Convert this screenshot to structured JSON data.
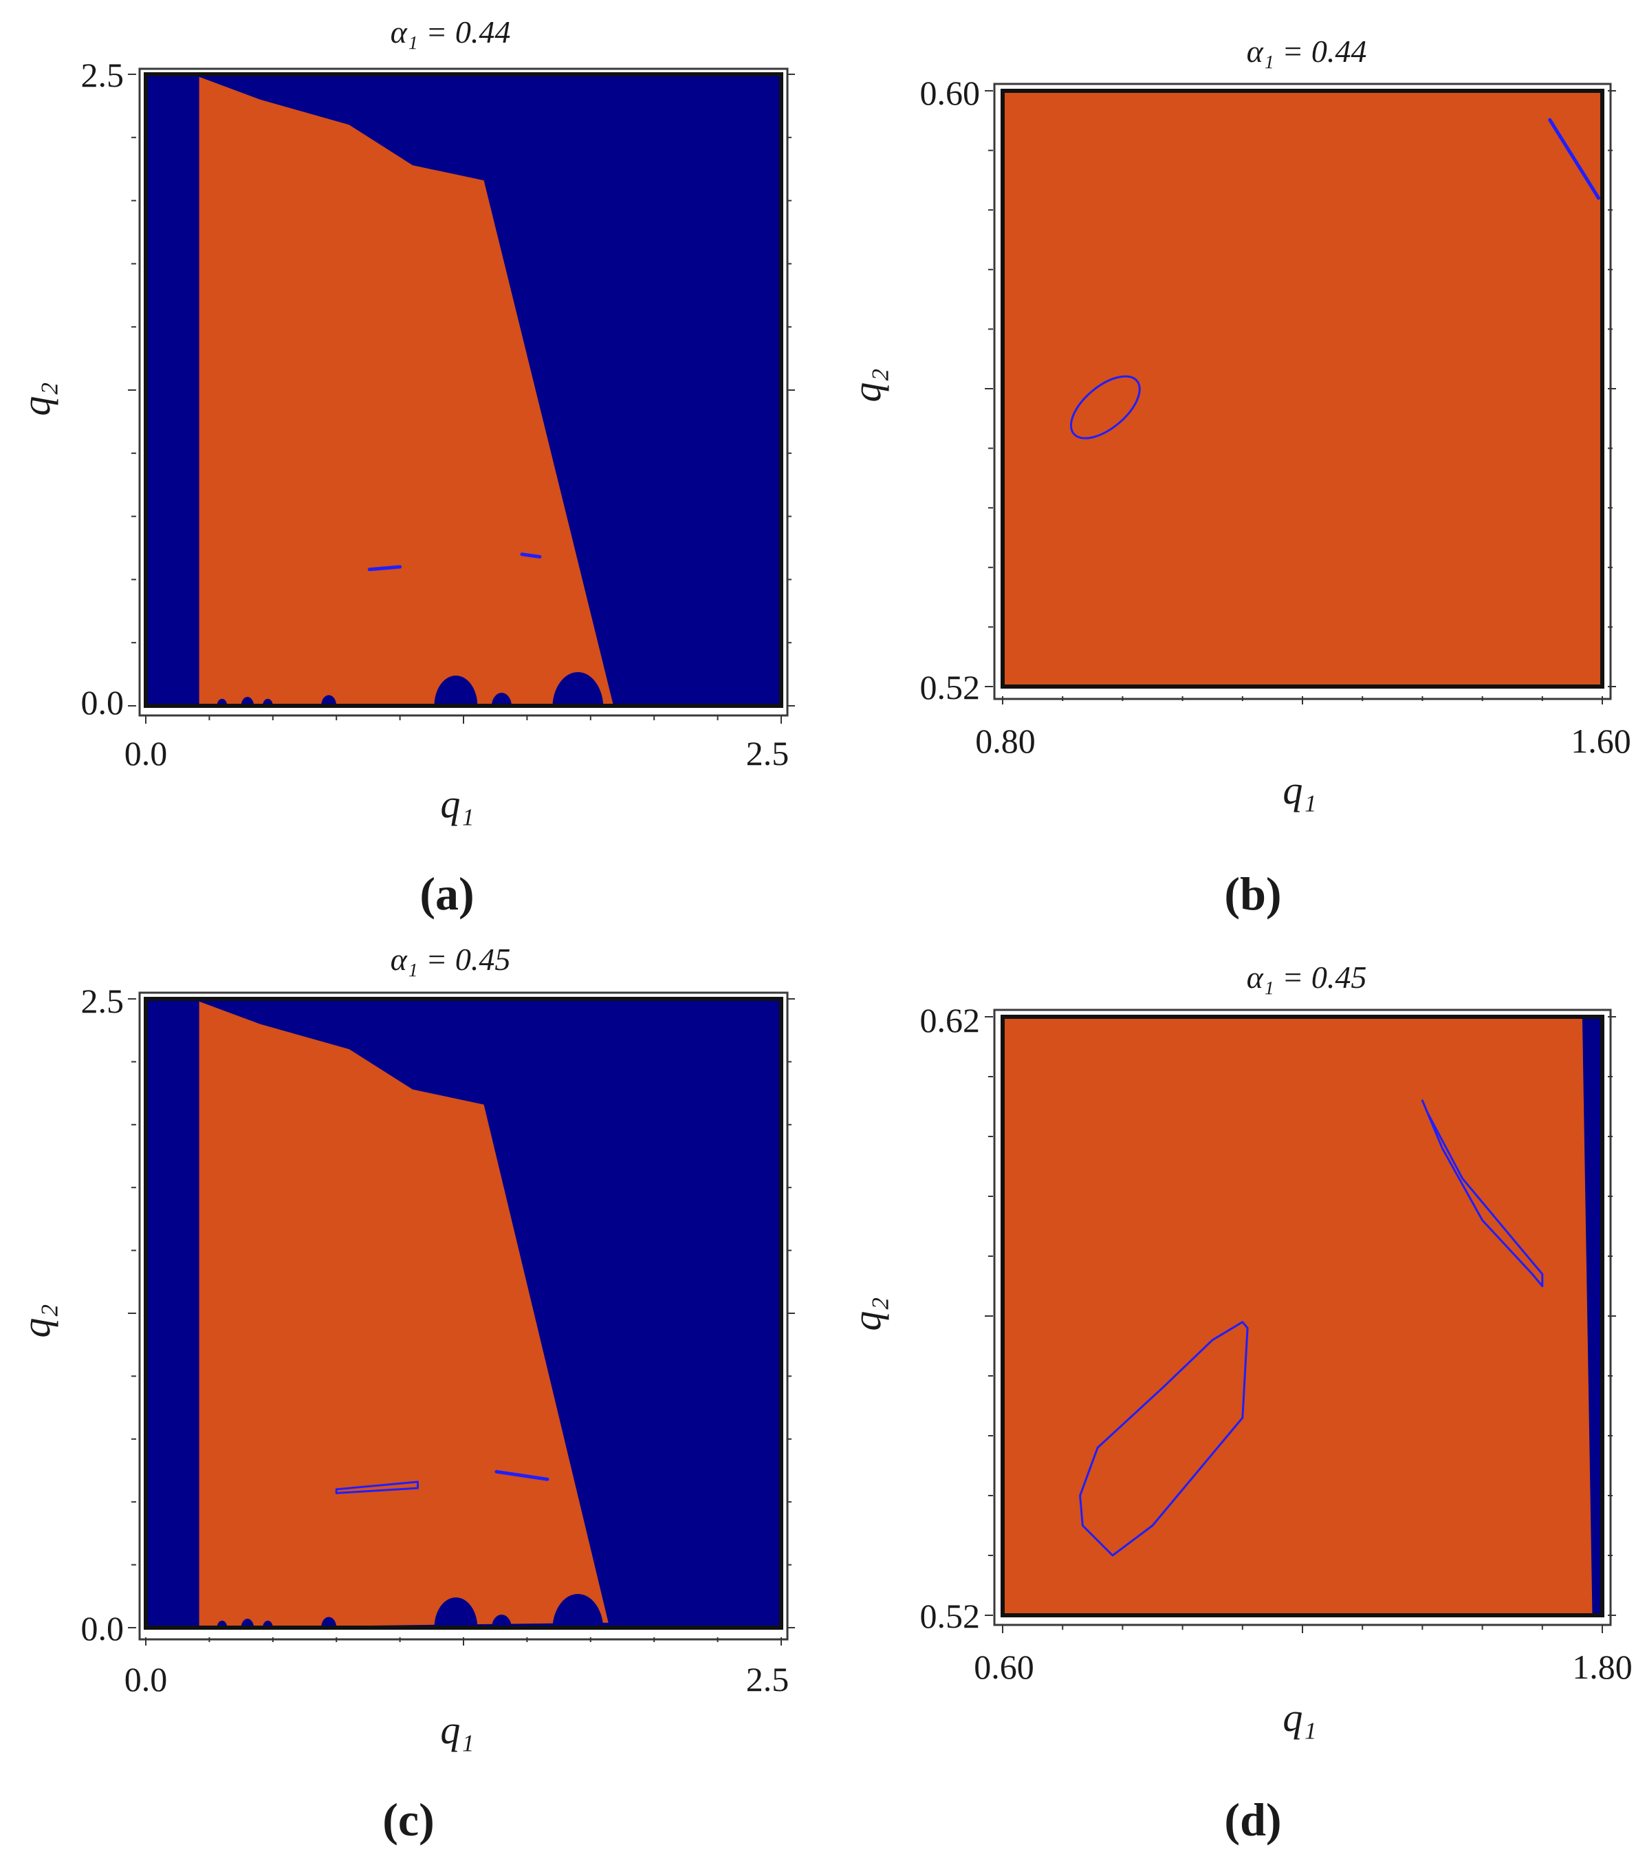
{
  "colors": {
    "blue_region": "#00008B",
    "orange_region": "#D5501B",
    "curve": "#1f1fff",
    "frame": "#111111"
  },
  "chart_data": [
    {
      "id": "a",
      "type": "heatmap",
      "caption": "(a)",
      "caption_letter": "a",
      "title": "α₁ = 0.44",
      "xlabel": "q₁",
      "ylabel": "q₂",
      "xlim": [
        0.0,
        2.5
      ],
      "ylim": [
        0.0,
        2.5
      ],
      "xticks": [
        "0.0",
        "2.5"
      ],
      "yticks": [
        "0.0",
        "2.5"
      ],
      "regions": [
        {
          "color": "blue_region",
          "label": "background"
        },
        {
          "color": "orange_region",
          "label": "region",
          "boundary": [
            [
              0.21,
              2.49
            ],
            [
              0.45,
              2.4
            ],
            [
              0.8,
              2.3
            ],
            [
              1.05,
              2.14
            ],
            [
              1.33,
              2.08
            ],
            [
              1.84,
              0.0
            ],
            [
              0.21,
              0.0
            ]
          ]
        }
      ],
      "curves": [
        {
          "shape": "line",
          "points": [
            [
              0.88,
              0.54
            ],
            [
              1.0,
              0.55
            ]
          ]
        },
        {
          "shape": "line",
          "points": [
            [
              1.48,
              0.6
            ],
            [
              1.55,
              0.59
            ]
          ]
        }
      ],
      "bumps_along_bottom": [
        [
          0.72,
          0.06
        ],
        [
          0.4,
          0.05
        ],
        [
          1.22,
          0.17
        ],
        [
          1.7,
          0.2
        ],
        [
          0.3,
          0.04
        ],
        [
          0.48,
          0.04
        ],
        [
          1.4,
          0.08
        ]
      ]
    },
    {
      "id": "b",
      "type": "heatmap",
      "caption": "(b)",
      "caption_letter": "b",
      "title": "α₁ = 0.44",
      "xlabel": "q₁",
      "ylabel": "q₂",
      "xlim": [
        0.8,
        1.6
      ],
      "ylim": [
        0.52,
        0.6
      ],
      "xticks": [
        "0.80",
        "1.60"
      ],
      "yticks": [
        "0.52",
        "0.60"
      ],
      "regions": [
        {
          "color": "orange_region",
          "label": "region"
        }
      ],
      "curves": [
        {
          "shape": "ellipse",
          "center": [
            0.937,
            0.5575
          ],
          "rx": 0.055,
          "ry": 0.0028,
          "angle_deg": -40
        },
        {
          "shape": "line",
          "points": [
            [
              1.53,
              0.5961
            ],
            [
              1.595,
              0.5856
            ]
          ]
        }
      ]
    },
    {
      "id": "c",
      "type": "heatmap",
      "caption": "(c)",
      "caption_letter": "c",
      "title": "α₁ = 0.45",
      "xlabel": "q₁",
      "ylabel": "q₂",
      "xlim": [
        0.0,
        2.5
      ],
      "ylim": [
        0.0,
        2.5
      ],
      "xticks": [
        "0.0",
        "2.5"
      ],
      "yticks": [
        "0.0",
        "2.5"
      ],
      "regions": [
        {
          "color": "blue_region",
          "label": "background"
        },
        {
          "color": "orange_region",
          "label": "region",
          "boundary": [
            [
              0.21,
              2.49
            ],
            [
              0.45,
              2.4
            ],
            [
              0.8,
              2.3
            ],
            [
              1.05,
              2.14
            ],
            [
              1.33,
              2.08
            ],
            [
              1.82,
              0.02
            ],
            [
              0.21,
              0.0
            ]
          ]
        }
      ],
      "curves": [
        {
          "shape": "polygon",
          "points": [
            [
              0.75,
              0.55
            ],
            [
              1.07,
              0.58
            ],
            [
              1.07,
              0.555
            ],
            [
              0.75,
              0.535
            ]
          ]
        },
        {
          "shape": "line",
          "points": [
            [
              1.38,
              0.62
            ],
            [
              1.58,
              0.59
            ]
          ]
        }
      ],
      "bumps_along_bottom": [
        [
          0.72,
          0.06
        ],
        [
          0.4,
          0.05
        ],
        [
          1.22,
          0.17
        ],
        [
          1.7,
          0.2
        ],
        [
          0.3,
          0.04
        ],
        [
          0.48,
          0.04
        ],
        [
          1.4,
          0.08
        ]
      ]
    },
    {
      "id": "d",
      "type": "heatmap",
      "caption": "(d)",
      "caption_letter": "d",
      "title": "α₁ = 0.45",
      "xlabel": "q₁",
      "ylabel": "q₂",
      "xlim": [
        0.6,
        1.8
      ],
      "ylim": [
        0.52,
        0.62
      ],
      "xticks": [
        "0.60",
        "1.80"
      ],
      "yticks": [
        "0.52",
        "0.62"
      ],
      "regions": [
        {
          "color": "orange_region",
          "label": "region"
        },
        {
          "color": "blue_region",
          "label": "band",
          "boundary": [
            [
              1.76,
              0.62
            ],
            [
              1.8,
              0.62
            ],
            [
              1.8,
              0.52
            ],
            [
              1.78,
              0.52
            ]
          ]
        }
      ],
      "curves": [
        {
          "shape": "polygon",
          "points": [
            [
              0.76,
              0.535
            ],
            [
              0.82,
              0.53
            ],
            [
              0.9,
              0.535
            ],
            [
              1.08,
              0.553
            ],
            [
              1.09,
              0.568
            ],
            [
              1.08,
              0.569
            ],
            [
              1.02,
              0.566
            ],
            [
              0.92,
              0.558
            ],
            [
              0.79,
              0.548
            ],
            [
              0.755,
              0.54
            ]
          ]
        },
        {
          "shape": "polygon",
          "points": [
            [
              1.44,
              0.606
            ],
            [
              1.48,
              0.598
            ],
            [
              1.56,
              0.586
            ],
            [
              1.66,
              0.577
            ],
            [
              1.68,
              0.575
            ],
            [
              1.68,
              0.577
            ],
            [
              1.62,
              0.583
            ],
            [
              1.52,
              0.593
            ],
            [
              1.45,
              0.604
            ]
          ]
        }
      ]
    }
  ]
}
